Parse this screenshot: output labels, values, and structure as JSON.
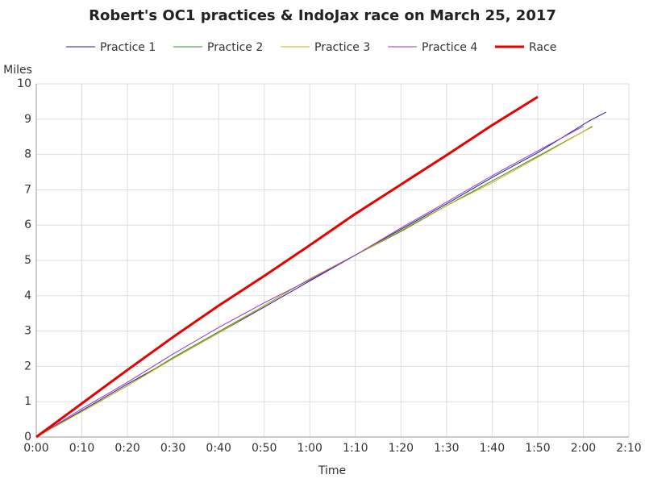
{
  "chart_data": {
    "type": "line",
    "title": "Robert's OC1 practices & IndoJax race on March 25, 2017",
    "x_label": "Time",
    "y_label": "Miles",
    "x": [
      0,
      10,
      20,
      30,
      40,
      50,
      60,
      70,
      80,
      90,
      100,
      110,
      120,
      122,
      125
    ],
    "series": [
      {
        "name": "Practice 1",
        "color": "#1c1c9e",
        "values": [
          0,
          0.75,
          1.5,
          2.22,
          2.95,
          3.68,
          4.42,
          5.15,
          5.88,
          6.6,
          7.35,
          8.05,
          8.85,
          9.0,
          9.2
        ]
      },
      {
        "name": "Practice 2",
        "color": "#2e8b2e",
        "values": [
          0,
          0.72,
          1.45,
          2.25,
          2.98,
          3.72,
          4.48,
          5.15,
          5.82,
          6.55,
          7.25,
          7.95,
          8.65,
          8.8,
          null
        ]
      },
      {
        "name": "Practice 3",
        "color": "#d4b000",
        "values": [
          0,
          0.72,
          1.45,
          2.22,
          2.95,
          3.72,
          4.48,
          5.15,
          5.85,
          6.55,
          7.2,
          7.92,
          8.65,
          8.78,
          null
        ]
      },
      {
        "name": "Practice 4",
        "color": "#9932cc",
        "values": [
          0,
          0.8,
          1.55,
          2.35,
          3.1,
          3.8,
          4.45,
          5.15,
          5.92,
          6.65,
          7.4,
          8.1,
          8.8,
          null,
          null
        ]
      },
      {
        "name": "Race",
        "color": "#e60000",
        "values": [
          0,
          0.95,
          1.9,
          2.83,
          3.72,
          4.56,
          5.43,
          6.32,
          7.15,
          7.98,
          8.83,
          9.63,
          null,
          null,
          null
        ]
      }
    ],
    "xlim": [
      0,
      130
    ],
    "xticks": [
      {
        "value": 0,
        "label": "0:00"
      },
      {
        "value": 10,
        "label": "0:10"
      },
      {
        "value": 20,
        "label": "0:20"
      },
      {
        "value": 30,
        "label": "0:30"
      },
      {
        "value": 40,
        "label": "0:40"
      },
      {
        "value": 50,
        "label": "0:50"
      },
      {
        "value": 60,
        "label": "1:00"
      },
      {
        "value": 70,
        "label": "1:10"
      },
      {
        "value": 80,
        "label": "1:20"
      },
      {
        "value": 90,
        "label": "1:30"
      },
      {
        "value": 100,
        "label": "1:40"
      },
      {
        "value": 110,
        "label": "1:50"
      },
      {
        "value": 120,
        "label": "2:00"
      },
      {
        "value": 130,
        "label": "2:10"
      }
    ],
    "ylim": [
      0,
      10
    ],
    "yticks": [
      0,
      1,
      2,
      3,
      4,
      5,
      6,
      7,
      8,
      9,
      10
    ],
    "grid": true
  }
}
